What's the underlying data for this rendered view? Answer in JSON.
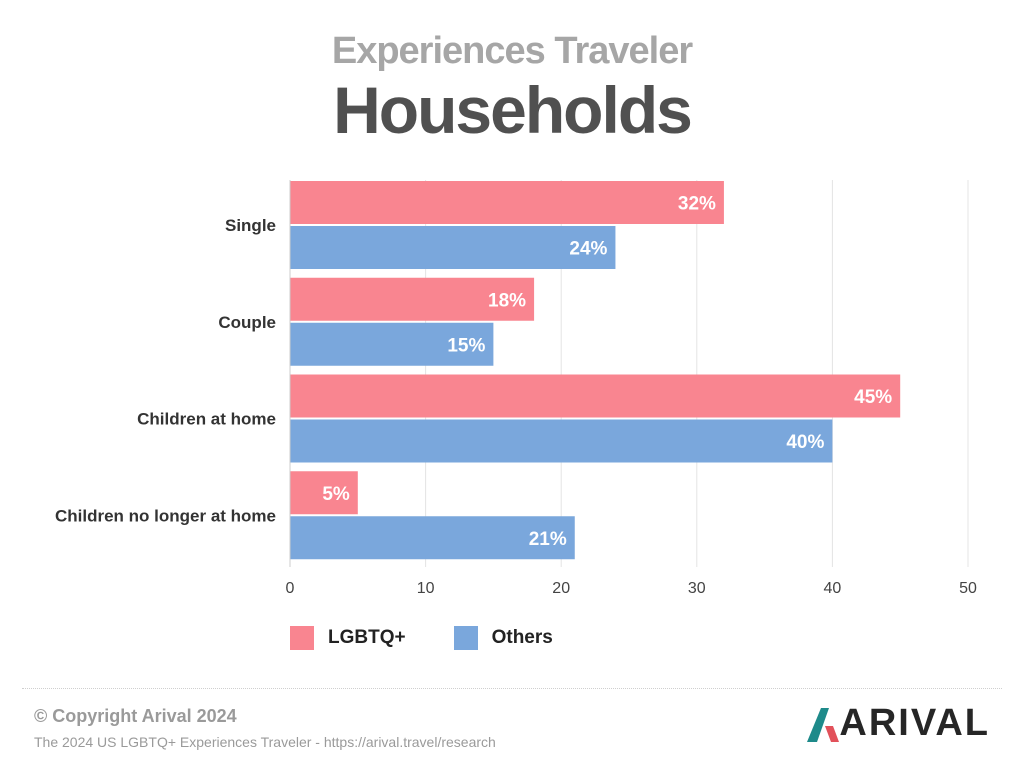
{
  "header": {
    "subtitle": "Experiences Traveler",
    "title": "Households"
  },
  "chart_data": {
    "type": "bar",
    "orientation": "horizontal",
    "categories": [
      "Single",
      "Couple",
      "Children at home",
      "Children no longer at home"
    ],
    "series": [
      {
        "name": "LGBTQ+",
        "values": [
          32,
          18,
          45,
          5
        ],
        "color": "#f98590"
      },
      {
        "name": "Others",
        "values": [
          24,
          15,
          40,
          21
        ],
        "color": "#7aa7dc"
      }
    ],
    "data_labels": [
      [
        "32%",
        "18%",
        "45%",
        "5%"
      ],
      [
        "24%",
        "15%",
        "40%",
        "21%"
      ]
    ],
    "xlim": [
      0,
      50
    ],
    "xticks": [
      0,
      10,
      20,
      30,
      40,
      50
    ],
    "grid": true,
    "legend": "bottom-left"
  },
  "footer": {
    "copyright": "© Copyright Arival 2024",
    "source": "The 2024 US LGBTQ+ Experiences Traveler - https://arival.travel/research",
    "logo_text": "ARIVAL"
  },
  "colors": {
    "gridline": "#e4e4e4",
    "axis_text": "#444444",
    "label_text": "#ffffff",
    "logo_teal": "#1e8a8a",
    "logo_red": "#e2515a"
  }
}
